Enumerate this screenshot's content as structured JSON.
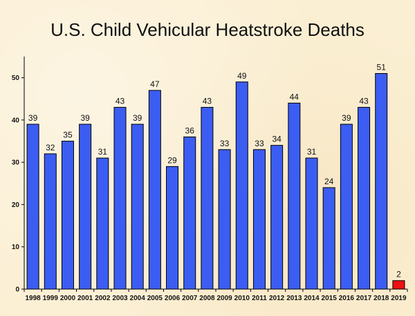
{
  "chart_data": {
    "type": "bar",
    "title": "U.S. Child Vehicular Heatstroke Deaths",
    "xlabel": "",
    "ylabel": "",
    "categories": [
      "1998",
      "1999",
      "2000",
      "2001",
      "2002",
      "2003",
      "2004",
      "2005",
      "2006",
      "2007",
      "2008",
      "2009",
      "2010",
      "2011",
      "2012",
      "2013",
      "2014",
      "2015",
      "2016",
      "2017",
      "2018",
      "2019"
    ],
    "values": [
      39,
      32,
      35,
      39,
      31,
      43,
      39,
      47,
      29,
      36,
      43,
      33,
      49,
      33,
      34,
      44,
      31,
      24,
      39,
      43,
      51,
      2
    ],
    "ylim": [
      0,
      55
    ],
    "yticks": [
      0,
      10,
      20,
      30,
      40,
      50
    ],
    "grid": false,
    "legend": "none",
    "colors": {
      "bar": "#3c5df2",
      "highlight_bar": "#ee1111",
      "bar_stroke": "#000000"
    },
    "highlight_index": 21
  }
}
